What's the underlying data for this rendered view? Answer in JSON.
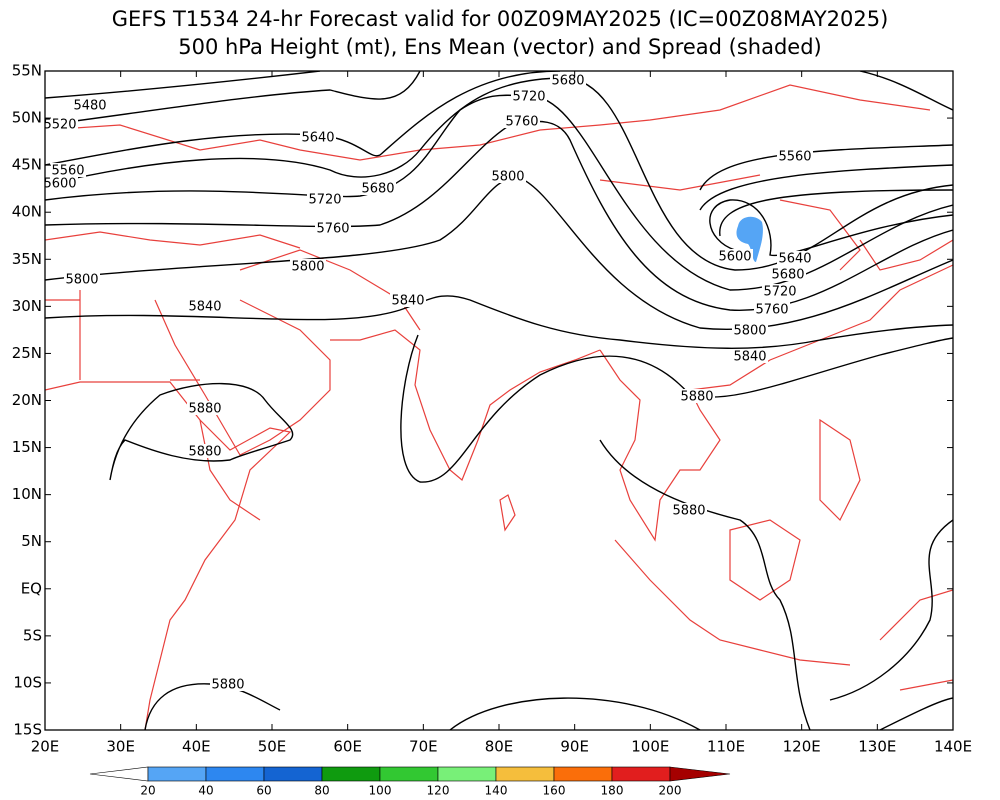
{
  "chart_data": {
    "type": "contour",
    "title": "GEFS T1534 24-hr Forecast valid for 00Z09MAY2025 (IC=00Z08MAY2025)",
    "subtitle": "500 hPa Height (mt), Ens Mean (vector) and Spread (shaded)",
    "xlim": [
      20,
      140
    ],
    "ylim": [
      -15,
      55
    ],
    "xticks": [
      {
        "value": 20,
        "label": "20E"
      },
      {
        "value": 30,
        "label": "30E"
      },
      {
        "value": 40,
        "label": "40E"
      },
      {
        "value": 50,
        "label": "50E"
      },
      {
        "value": 60,
        "label": "60E"
      },
      {
        "value": 70,
        "label": "70E"
      },
      {
        "value": 80,
        "label": "80E"
      },
      {
        "value": 90,
        "label": "90E"
      },
      {
        "value": 100,
        "label": "100E"
      },
      {
        "value": 110,
        "label": "110E"
      },
      {
        "value": 120,
        "label": "120E"
      },
      {
        "value": 130,
        "label": "130E"
      },
      {
        "value": 140,
        "label": "140E"
      }
    ],
    "yticks": [
      {
        "value": 55,
        "label": "55N"
      },
      {
        "value": 50,
        "label": "50N"
      },
      {
        "value": 45,
        "label": "45N"
      },
      {
        "value": 40,
        "label": "40N"
      },
      {
        "value": 35,
        "label": "35N"
      },
      {
        "value": 30,
        "label": "30N"
      },
      {
        "value": 25,
        "label": "25N"
      },
      {
        "value": 20,
        "label": "20N"
      },
      {
        "value": 15,
        "label": "15N"
      },
      {
        "value": 10,
        "label": "10N"
      },
      {
        "value": 5,
        "label": "5N"
      },
      {
        "value": 0,
        "label": "EQ"
      },
      {
        "value": -5,
        "label": "5S"
      },
      {
        "value": -10,
        "label": "10S"
      },
      {
        "value": -15,
        "label": "15S"
      }
    ],
    "contour_labels": [
      5480,
      5520,
      5560,
      5600,
      5640,
      5680,
      5720,
      5760,
      5800,
      5800,
      5840,
      5840,
      5880,
      5880,
      5880,
      5680,
      5720,
      5760,
      5800,
      5560,
      5600,
      5640,
      5680,
      5720,
      5760,
      5800,
      5840,
      5880,
      5880
    ],
    "colorbar": {
      "ticks": [
        20,
        40,
        60,
        80,
        100,
        120,
        140,
        160,
        180,
        200
      ],
      "colors": [
        "#ffffff",
        "#55a5f5",
        "#2d87f0",
        "#1464d2",
        "#0f9b0f",
        "#32c832",
        "#78f078",
        "#f5be3c",
        "#fa6e0a",
        "#e11e1e",
        "#a50000"
      ]
    }
  }
}
